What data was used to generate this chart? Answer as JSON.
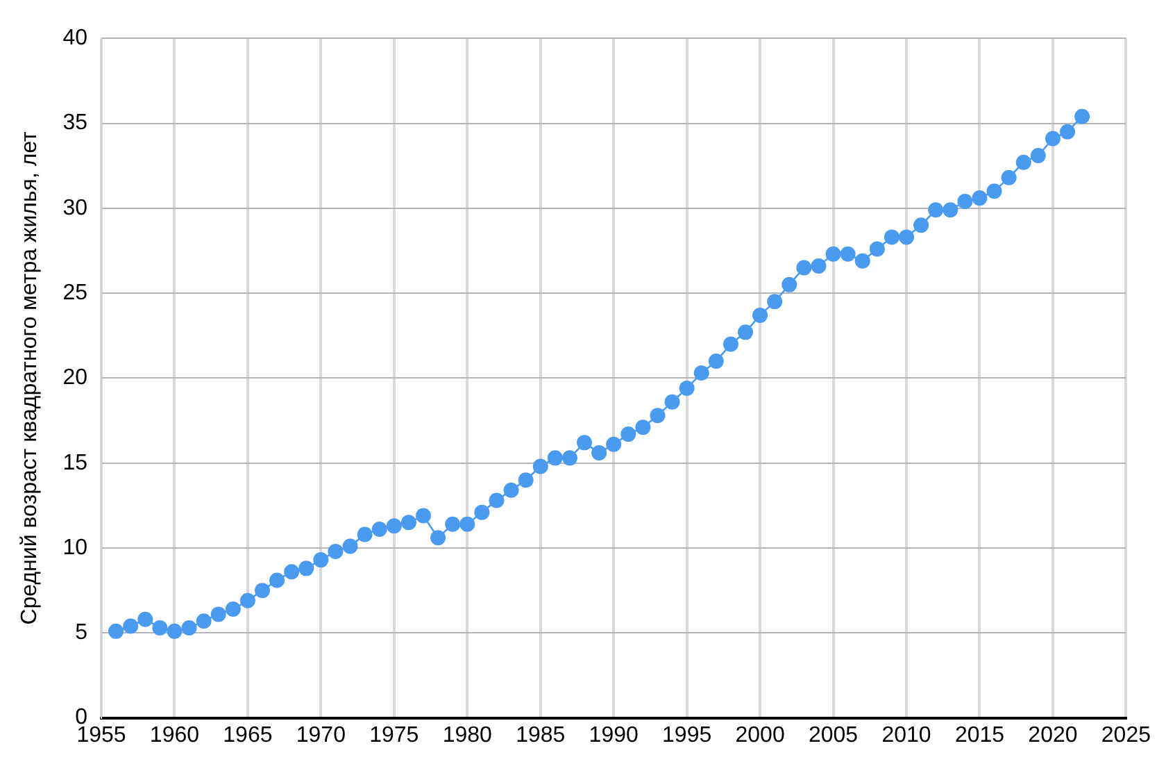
{
  "chart_data": {
    "type": "line",
    "ylabel": "Средний возраст квадратного метра жилья, лет",
    "x": [
      1956,
      1957,
      1958,
      1959,
      1960,
      1961,
      1962,
      1963,
      1964,
      1965,
      1966,
      1967,
      1968,
      1969,
      1970,
      1971,
      1972,
      1973,
      1974,
      1975,
      1976,
      1977,
      1978,
      1979,
      1980,
      1981,
      1982,
      1983,
      1984,
      1985,
      1986,
      1987,
      1988,
      1989,
      1990,
      1991,
      1992,
      1993,
      1994,
      1995,
      1996,
      1997,
      1998,
      1999,
      2000,
      2001,
      2002,
      2003,
      2004,
      2005,
      2006,
      2007,
      2008,
      2009,
      2010,
      2011,
      2012,
      2013,
      2014,
      2015,
      2016,
      2017,
      2018,
      2019,
      2020,
      2021,
      2022
    ],
    "series": [
      {
        "color": "#4a9af0",
        "values": [
          5.1,
          5.4,
          5.8,
          5.3,
          5.1,
          5.3,
          5.7,
          6.1,
          6.4,
          6.9,
          7.5,
          8.1,
          8.6,
          8.8,
          9.3,
          9.8,
          10.1,
          10.8,
          11.1,
          11.3,
          11.5,
          11.9,
          10.6,
          11.4,
          11.4,
          12.1,
          12.8,
          13.4,
          14.0,
          14.8,
          15.3,
          15.3,
          16.2,
          15.6,
          16.1,
          16.7,
          17.1,
          17.8,
          18.6,
          19.4,
          20.3,
          21.0,
          22.0,
          22.7,
          23.7,
          24.5,
          25.5,
          26.5,
          26.6,
          27.3,
          27.3,
          26.9,
          27.6,
          28.3,
          28.3,
          29.0,
          29.9,
          29.9,
          30.4,
          30.6,
          31.0,
          31.8,
          32.7,
          33.1,
          34.1,
          34.5,
          35.4
        ]
      }
    ],
    "xlim": [
      1955,
      2025
    ],
    "xticks": [
      1955,
      1960,
      1965,
      1970,
      1975,
      1980,
      1985,
      1990,
      1995,
      2000,
      2005,
      2010,
      2015,
      2020,
      2025
    ],
    "ylim": [
      0,
      40
    ],
    "yticks": [
      0,
      5,
      10,
      15,
      20,
      25,
      30,
      35,
      40
    ],
    "grid": true,
    "legend": false,
    "marker": "circle",
    "line_style": "solid"
  }
}
